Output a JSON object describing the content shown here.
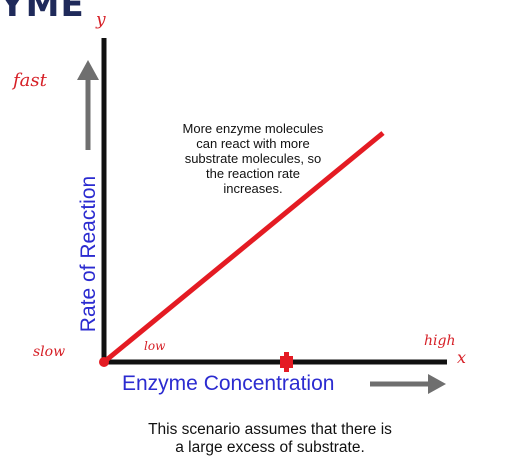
{
  "header_fragment": "YME",
  "chart_data": {
    "type": "line",
    "series": [
      {
        "x": [
          0,
          1
        ],
        "y": [
          0,
          1
        ]
      }
    ],
    "xlabel": "Enzyme Concentration",
    "ylabel": "Rate of Reaction",
    "x_axis_letter": "x",
    "y_axis_letter": "y",
    "y_tick_labels": {
      "top": "fast",
      "bottom": "slow"
    },
    "x_tick_labels": {
      "left": "low",
      "right": "high"
    },
    "annotation": [
      "More enzyme molecules",
      "can react with more",
      "substrate molecules, so",
      "the reaction rate",
      "increases."
    ],
    "caption": [
      "This scenario assumes that there is",
      "a large excess of substrate."
    ],
    "grid": false,
    "legend": "none",
    "colors": {
      "line": "#e41b23",
      "axis": "#111111",
      "labels": "#2b2bd0",
      "hand_notes": "#d61f26",
      "arrows": "#6f6f6f",
      "marker": "#e41b23"
    }
  }
}
